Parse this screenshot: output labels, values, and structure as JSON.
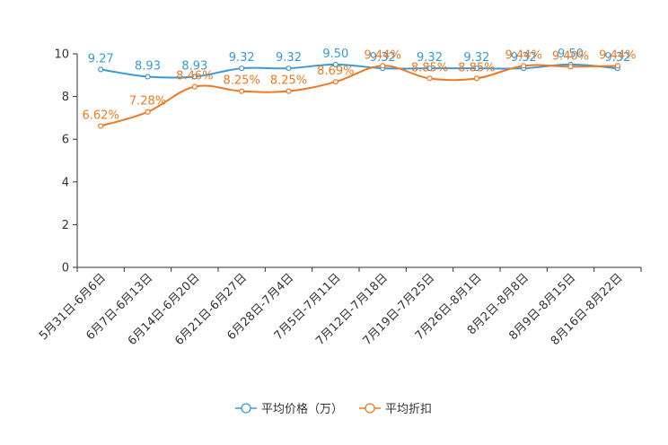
{
  "chart_data": {
    "type": "line",
    "title": "",
    "xlabel": "",
    "ylabel": "",
    "ylim": [
      0,
      10
    ],
    "yticks": [
      0,
      2,
      4,
      6,
      8,
      10
    ],
    "categories": [
      "5月31日-6月6日",
      "6月7日-6月13日",
      "6月14日-6月20日",
      "6月21日-6月27日",
      "6月28日-7月4日",
      "7月5日-7月11日",
      "7月12日-7月18日",
      "7月19日-7月25日",
      "7月26日-8月1日",
      "8月2日-8月8日",
      "8月9日-8月15日",
      "8月16日-8月22日"
    ],
    "series": [
      {
        "name": "平均价格（万）",
        "color": "#3a9ad9",
        "values": [
          9.27,
          8.93,
          8.93,
          9.32,
          9.32,
          9.5,
          9.32,
          9.32,
          9.32,
          9.32,
          9.5,
          9.32
        ],
        "labels": [
          "9.27",
          "8.93",
          "8.93",
          "9.32",
          "9.32",
          "9.50",
          "9.32",
          "9.32",
          "9.32",
          "9.32",
          "9.50",
          "9.32"
        ]
      },
      {
        "name": "平均折扣",
        "color": "#f07820",
        "values": [
          6.62,
          7.28,
          8.46,
          8.25,
          8.25,
          8.69,
          9.44,
          8.85,
          8.85,
          9.44,
          9.4,
          9.44
        ],
        "labels": [
          "6.62%",
          "7.28%",
          "8.46%",
          "8.25%",
          "8.25%",
          "8.69%",
          "9.44%",
          "8.85%",
          "8.85%",
          "9.44%",
          "9.40%",
          "9.44%"
        ]
      }
    ],
    "legend_position": "bottom-center",
    "grid": false
  }
}
